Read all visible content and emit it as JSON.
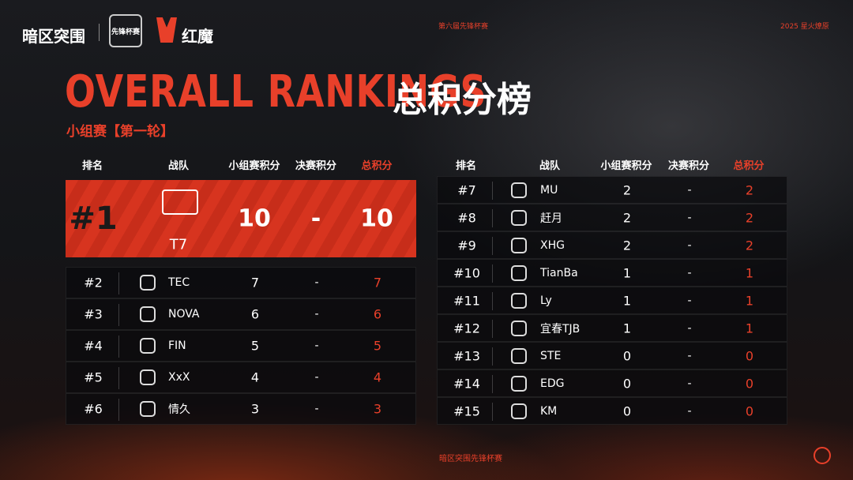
{
  "header": {
    "brand": "暗区突围",
    "cup_logo": "先锋杯赛",
    "sponsor": "红魔",
    "edition": "第六届先锋杯赛",
    "season": "2025 星火燎原",
    "title": "OVERALL RANKINGS",
    "title_cn": "总积分榜",
    "subtitle": "小组赛【第一轮】"
  },
  "left_table": {
    "columns": [
      "排名",
      "战队",
      "小组赛积分",
      "决赛积分",
      "总积分"
    ],
    "rows": [
      [
        "#1",
        "T7",
        10,
        "-",
        10
      ],
      [
        "#2",
        "TEC",
        7,
        "-",
        7
      ],
      [
        "#3",
        "NOVA",
        6,
        "-",
        6
      ],
      [
        "#4",
        "FIN",
        5,
        "-",
        5
      ],
      [
        "#5",
        "XxX",
        4,
        "-",
        4
      ],
      [
        "#6",
        "情久",
        3,
        "-",
        3
      ]
    ]
  },
  "right_table": {
    "columns": [
      "排名",
      "战队",
      "小组赛积分",
      "决赛积分",
      "总积分"
    ],
    "rows": [
      [
        "#7",
        "MU",
        2,
        "-",
        2
      ],
      [
        "#8",
        "赶月",
        2,
        "-",
        2
      ],
      [
        "#9",
        "XHG",
        2,
        "-",
        2
      ],
      [
        "#10",
        "TianBa",
        1,
        "-",
        1
      ],
      [
        "#11",
        "Ly",
        1,
        "-",
        1
      ],
      [
        "#12",
        "宜春TJB",
        1,
        "-",
        1
      ],
      [
        "#13",
        "STE",
        0,
        "-",
        0
      ],
      [
        "#14",
        "EDG",
        0,
        "-",
        0
      ],
      [
        "#15",
        "KM",
        0,
        "-",
        0
      ]
    ]
  },
  "footer": {
    "text": "暗区突围先锋杯赛"
  }
}
